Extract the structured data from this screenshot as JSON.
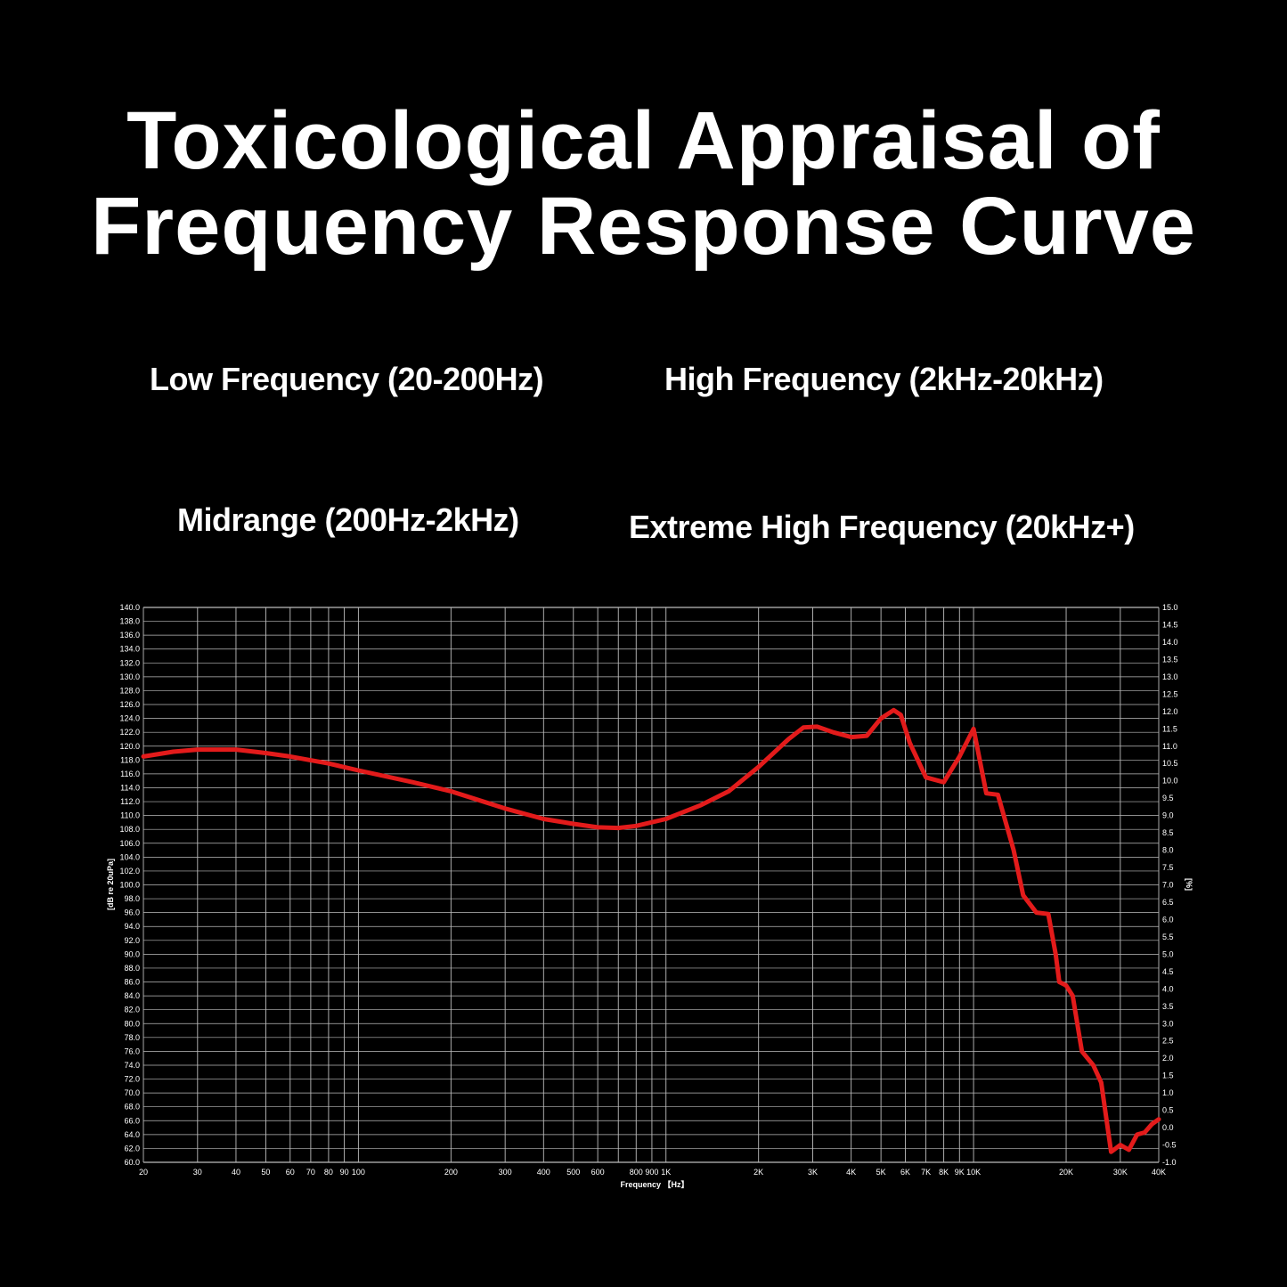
{
  "title": {
    "line1": "Toxicological Appraisal of",
    "line2": "Frequency Response Curve"
  },
  "bands": {
    "low": "Low Frequency (20-200Hz)",
    "high": "High Frequency (2kHz-20kHz)",
    "mid": "Midrange (200Hz-2kHz)",
    "extreme": "Extreme High Frequency (20kHz+)"
  },
  "chart_data": {
    "type": "line",
    "xlabel": "Frequency 【Hz】",
    "ylabel": "[dB re 20uPa]",
    "y2label": "[%]",
    "x_scale": "log",
    "xlim": [
      20,
      40000
    ],
    "ylim": [
      60,
      140
    ],
    "y2lim": [
      -1,
      15
    ],
    "grid": true,
    "line_color": "#e31b1b",
    "x_ticks": [
      {
        "v": 20,
        "label": "20"
      },
      {
        "v": 30,
        "label": "30"
      },
      {
        "v": 40,
        "label": "40"
      },
      {
        "v": 50,
        "label": "50"
      },
      {
        "v": 60,
        "label": "60"
      },
      {
        "v": 70,
        "label": "70"
      },
      {
        "v": 80,
        "label": "80"
      },
      {
        "v": 90,
        "label": "90"
      },
      {
        "v": 100,
        "label": "100"
      },
      {
        "v": 200,
        "label": "200"
      },
      {
        "v": 300,
        "label": "300"
      },
      {
        "v": 400,
        "label": "400"
      },
      {
        "v": 500,
        "label": "500"
      },
      {
        "v": 600,
        "label": "600"
      },
      {
        "v": 800,
        "label": "800"
      },
      {
        "v": 900,
        "label": "900"
      },
      {
        "v": 1000,
        "label": "1K"
      },
      {
        "v": 2000,
        "label": "2K"
      },
      {
        "v": 3000,
        "label": "3K"
      },
      {
        "v": 4000,
        "label": "4K"
      },
      {
        "v": 5000,
        "label": "5K"
      },
      {
        "v": 6000,
        "label": "6K"
      },
      {
        "v": 7000,
        "label": "7K"
      },
      {
        "v": 8000,
        "label": "8K"
      },
      {
        "v": 9000,
        "label": "9K"
      },
      {
        "v": 10000,
        "label": "10K"
      },
      {
        "v": 20000,
        "label": "20K"
      },
      {
        "v": 30000,
        "label": "30K"
      },
      {
        "v": 40000,
        "label": "40K"
      }
    ],
    "x_grid": [
      20,
      30,
      40,
      50,
      60,
      70,
      80,
      90,
      100,
      200,
      300,
      400,
      500,
      600,
      700,
      800,
      900,
      1000,
      2000,
      3000,
      4000,
      5000,
      6000,
      7000,
      8000,
      9000,
      10000,
      20000,
      30000,
      40000
    ],
    "y_ticks": [
      "60.0",
      "62.0",
      "64.0",
      "66.0",
      "68.0",
      "70.0",
      "72.0",
      "74.0",
      "76.0",
      "78.0",
      "80.0",
      "82.0",
      "84.0",
      "86.0",
      "88.0",
      "90.0",
      "92.0",
      "94.0",
      "96.0",
      "98.0",
      "100.0",
      "102.0",
      "104.0",
      "106.0",
      "108.0",
      "110.0",
      "112.0",
      "114.0",
      "116.0",
      "118.0",
      "120.0",
      "122.0",
      "124.0",
      "126.0",
      "128.0",
      "130.0",
      "132.0",
      "134.0",
      "136.0",
      "138.0",
      "140.0"
    ],
    "y2_ticks": [
      "-1.0",
      "-0.5",
      "0.0",
      "0.5",
      "1.0",
      "1.5",
      "2.0",
      "2.5",
      "3.0",
      "3.5",
      "4.0",
      "4.5",
      "5.0",
      "5.5",
      "6.0",
      "6.5",
      "7.0",
      "7.5",
      "8.0",
      "8.5",
      "9.0",
      "9.5",
      "10.0",
      "10.5",
      "11.0",
      "11.5",
      "12.0",
      "12.5",
      "13.0",
      "13.5",
      "14.0",
      "14.5",
      "15.0"
    ],
    "series": [
      {
        "x": [
          20,
          25,
          30,
          40,
          50,
          60,
          80,
          100,
          150,
          200,
          300,
          400,
          500,
          600,
          700,
          800,
          1000,
          1300,
          1600,
          2000,
          2500,
          2800,
          3100,
          3500,
          4000,
          4500,
          5000,
          5500,
          5800,
          6200,
          7000,
          8000,
          9000,
          10000,
          11000,
          12000,
          13500,
          14500,
          16000,
          17500,
          18500,
          19000,
          20000,
          21000,
          22500,
          24500,
          26000,
          28000,
          30000,
          32000,
          34000,
          36000,
          38000,
          40000
        ],
        "y": [
          118.5,
          119.2,
          119.5,
          119.5,
          119.0,
          118.5,
          117.5,
          116.5,
          114.8,
          113.5,
          111.0,
          109.5,
          108.8,
          108.3,
          108.2,
          108.5,
          109.5,
          111.5,
          113.5,
          117.0,
          121.0,
          122.7,
          122.8,
          122.0,
          121.3,
          121.5,
          124.0,
          125.2,
          124.5,
          120.5,
          115.5,
          114.8,
          118.5,
          122.5,
          113.2,
          113.0,
          105.0,
          98.5,
          96.0,
          95.8,
          90.0,
          86.0,
          85.5,
          84.0,
          76.0,
          74.0,
          71.5,
          61.5,
          62.5,
          61.8,
          64.0,
          64.3,
          65.5,
          66.2
        ]
      }
    ]
  }
}
